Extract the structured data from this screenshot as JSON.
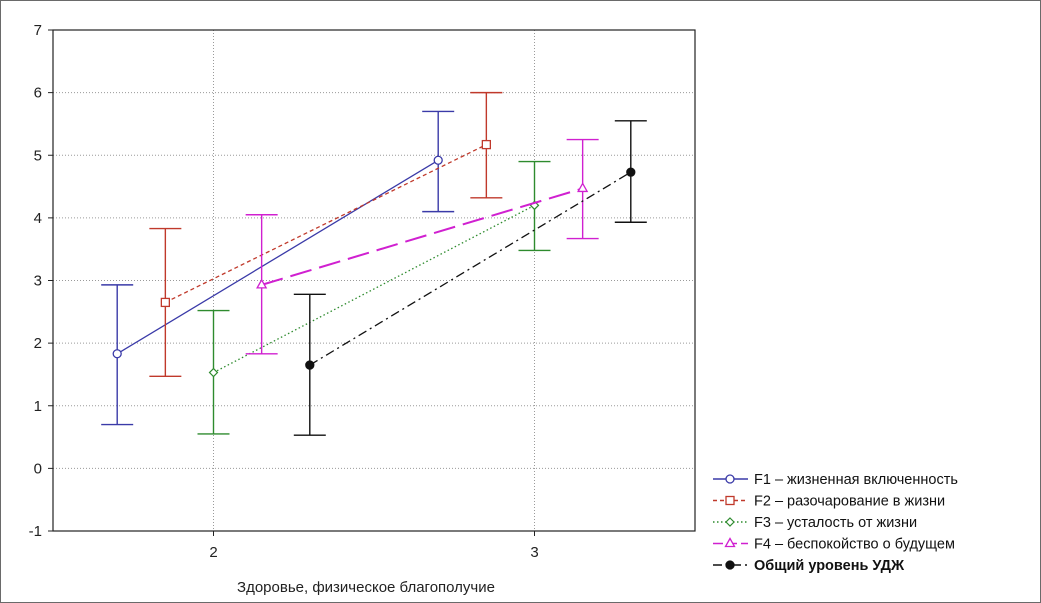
{
  "chart_data": {
    "type": "line",
    "subtype": "means-with-error-bars",
    "title": "",
    "xlabel": "Здоровье, физическое благополучие",
    "ylabel": "",
    "x_ticks": [
      "2",
      "3"
    ],
    "y_ticks": [
      "-1",
      "0",
      "1",
      "2",
      "3",
      "4",
      "5",
      "6",
      "7"
    ],
    "ylim": [
      -1,
      7
    ],
    "xlim": [
      1.5,
      3.5
    ],
    "grid": true,
    "legend_position": "bottom-right",
    "series": [
      {
        "name": "F1 – жизненная включенность",
        "color": "#3a3aa8",
        "marker": "circle-open",
        "line_style": "solid",
        "bold": false,
        "points": [
          {
            "x": 2,
            "mean": 1.83,
            "low": 0.7,
            "high": 2.93
          },
          {
            "x": 3,
            "mean": 4.92,
            "low": 4.1,
            "high": 5.7
          }
        ]
      },
      {
        "name": "F2 – разочарование в жизни",
        "color": "#c0392b",
        "marker": "square-open",
        "line_style": "dashed",
        "bold": false,
        "points": [
          {
            "x": 2,
            "mean": 2.65,
            "low": 1.47,
            "high": 3.83
          },
          {
            "x": 3,
            "mean": 5.17,
            "low": 4.32,
            "high": 6.0
          }
        ]
      },
      {
        "name": "F3 – усталость от жизни",
        "color": "#2e8b2e",
        "marker": "diamond-open",
        "line_style": "dotted",
        "bold": false,
        "points": [
          {
            "x": 2,
            "mean": 1.53,
            "low": 0.55,
            "high": 2.52
          },
          {
            "x": 3,
            "mean": 4.2,
            "low": 3.48,
            "high": 4.9
          }
        ]
      },
      {
        "name": "F4 – беспокойство о будущем",
        "color": "#d020d0",
        "marker": "triangle-open",
        "line_style": "long-dash",
        "bold": false,
        "points": [
          {
            "x": 2,
            "mean": 2.93,
            "low": 1.83,
            "high": 4.05
          },
          {
            "x": 3,
            "mean": 4.47,
            "low": 3.67,
            "high": 5.25
          }
        ]
      },
      {
        "name": "Общий уровень УДЖ",
        "color": "#111111",
        "marker": "circle-filled",
        "line_style": "dash-dot",
        "bold": true,
        "points": [
          {
            "x": 2,
            "mean": 1.65,
            "low": 0.53,
            "high": 2.78
          },
          {
            "x": 3,
            "mean": 4.73,
            "low": 3.93,
            "high": 5.55
          }
        ]
      }
    ]
  }
}
